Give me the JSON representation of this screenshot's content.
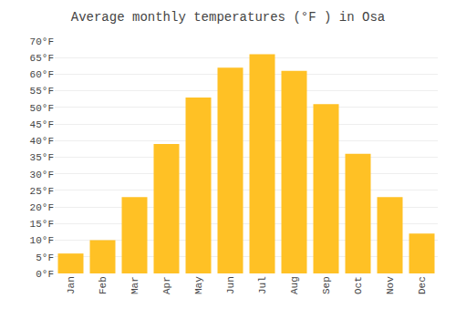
{
  "chart_data": {
    "type": "bar",
    "title": "Average monthly temperatures (°F ) in Osa",
    "categories": [
      "Jan",
      "Feb",
      "Mar",
      "Apr",
      "May",
      "Jun",
      "Jul",
      "Aug",
      "Sep",
      "Oct",
      "Nov",
      "Dec"
    ],
    "values": [
      6,
      10,
      23,
      39,
      53,
      62,
      66,
      61,
      51,
      36,
      23,
      12
    ],
    "color": "#FFC125",
    "ylim": [
      0,
      70
    ],
    "yticks": [
      {
        "value": 0,
        "label": "0°F"
      },
      {
        "value": 5,
        "label": "5°F"
      },
      {
        "value": 10,
        "label": "10°F"
      },
      {
        "value": 15,
        "label": "15°F"
      },
      {
        "value": 20,
        "label": "20°F"
      },
      {
        "value": 25,
        "label": "25°F"
      },
      {
        "value": 30,
        "label": "30°F"
      },
      {
        "value": 35,
        "label": "35°F"
      },
      {
        "value": 40,
        "label": "40°F"
      },
      {
        "value": 45,
        "label": "45°F"
      },
      {
        "value": 50,
        "label": "50°F"
      },
      {
        "value": 55,
        "label": "55°F"
      },
      {
        "value": 60,
        "label": "60°F"
      },
      {
        "value": 65,
        "label": "65°F"
      },
      {
        "value": 70,
        "label": "70°F"
      }
    ],
    "grid": true
  }
}
